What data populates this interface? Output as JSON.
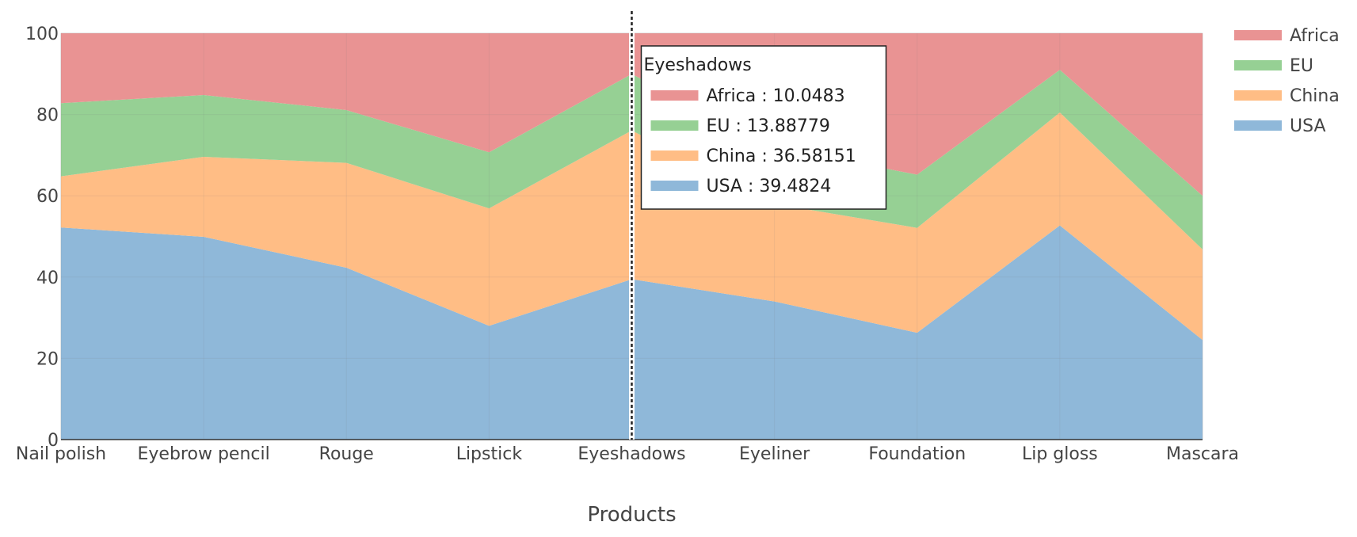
{
  "chart_data": {
    "type": "area",
    "stacked": true,
    "normalized_percent": true,
    "categories": [
      "Nail polish",
      "Eyebrow pencil",
      "Rouge",
      "Lipstick",
      "Eyeshadows",
      "Eyeliner",
      "Foundation",
      "Lip gloss",
      "Mascara"
    ],
    "series": [
      {
        "name": "USA",
        "color": "#8fb8d9",
        "values": [
          52.2,
          49.9,
          42.3,
          28.0,
          39.4824,
          34.0,
          26.3,
          52.7,
          24.5
        ]
      },
      {
        "name": "China",
        "color": "#ffbd85",
        "values": [
          12.6,
          19.7,
          25.8,
          28.9,
          36.58151,
          24.0,
          25.8,
          27.8,
          22.3
        ]
      },
      {
        "name": "EU",
        "color": "#96d094",
        "values": [
          18.0,
          15.2,
          13.0,
          13.8,
          13.88779,
          14.0,
          13.1,
          10.5,
          13.2
        ]
      },
      {
        "name": "Africa",
        "color": "#e99393",
        "values": [
          17.2,
          15.2,
          18.9,
          29.3,
          10.0483,
          28.0,
          34.8,
          9.0,
          40.0
        ]
      }
    ],
    "xlabel": "Products",
    "ylabel": "",
    "ylim": [
      0,
      100
    ],
    "yticks": [
      "0",
      "20",
      "40",
      "60",
      "80",
      "100"
    ],
    "grid": true,
    "legend_position": "top-right",
    "legend_order": [
      "Africa",
      "EU",
      "China",
      "USA"
    ],
    "hover": {
      "category": "Eyeshadows",
      "title": "Eyeshadows",
      "separator": " : ",
      "entries": [
        {
          "name": "Africa",
          "value": "10.0483",
          "color": "#e99393"
        },
        {
          "name": "EU",
          "value": "13.88779",
          "color": "#96d094"
        },
        {
          "name": "China",
          "value": "36.58151",
          "color": "#ffbd85"
        },
        {
          "name": "USA",
          "value": "39.4824",
          "color": "#8fb8d9"
        }
      ]
    }
  }
}
